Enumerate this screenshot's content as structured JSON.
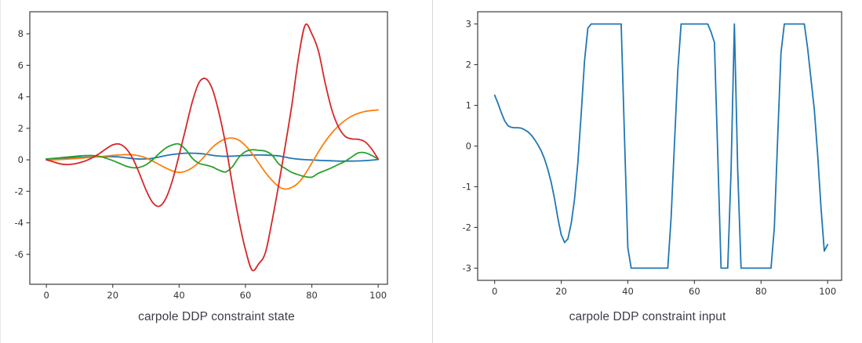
{
  "page": {
    "background": "#ffffff",
    "divider_color": "#d9d9d9"
  },
  "chart_data": [
    {
      "type": "line",
      "title": "carpole DDP constraint state",
      "xlabel": "",
      "ylabel": "",
      "x_ticks": [
        0,
        20,
        40,
        60,
        80,
        100
      ],
      "y_ticks": [
        8,
        6,
        4,
        2,
        0,
        -2,
        -4,
        -6
      ],
      "xlim": [
        -5,
        102.8
      ],
      "ylim": [
        -7.9,
        9.4
      ],
      "grid": false,
      "legend": null,
      "x": [
        0,
        2,
        4,
        6,
        8,
        10,
        12,
        14,
        16,
        18,
        20,
        22,
        24,
        26,
        28,
        30,
        32,
        34,
        36,
        38,
        40,
        42,
        44,
        46,
        48,
        50,
        52,
        54,
        56,
        58,
        60,
        62,
        64,
        66,
        68,
        70,
        72,
        74,
        76,
        78,
        80,
        82,
        84,
        86,
        88,
        90,
        92,
        94,
        96,
        98,
        100
      ],
      "series": [
        {
          "name": "blue-line",
          "color": "#1f77b4",
          "values": [
            0.05,
            0.08,
            0.1,
            0.12,
            0.14,
            0.15,
            0.17,
            0.18,
            0.19,
            0.2,
            0.2,
            0.18,
            0.13,
            0.08,
            0.05,
            0.06,
            0.1,
            0.18,
            0.27,
            0.34,
            0.39,
            0.42,
            0.42,
            0.4,
            0.36,
            0.29,
            0.24,
            0.22,
            0.23,
            0.26,
            0.28,
            0.3,
            0.31,
            0.3,
            0.28,
            0.25,
            0.17,
            0.09,
            0.04,
            0.01,
            -0.01,
            -0.03,
            -0.05,
            -0.06,
            -0.08,
            -0.08,
            -0.08,
            -0.07,
            -0.05,
            -0.02,
            0.02
          ]
        },
        {
          "name": "orange-line",
          "color": "#ff7f0e",
          "values": [
            0.0,
            0.0,
            0.02,
            0.04,
            0.07,
            0.1,
            0.13,
            0.17,
            0.2,
            0.24,
            0.28,
            0.31,
            0.33,
            0.32,
            0.25,
            0.12,
            -0.08,
            -0.3,
            -0.52,
            -0.7,
            -0.8,
            -0.72,
            -0.5,
            -0.15,
            0.3,
            0.78,
            1.12,
            1.33,
            1.38,
            1.25,
            0.9,
            0.4,
            -0.2,
            -0.8,
            -1.3,
            -1.7,
            -1.86,
            -1.75,
            -1.45,
            -0.9,
            -0.2,
            0.5,
            1.15,
            1.7,
            2.15,
            2.5,
            2.77,
            2.95,
            3.07,
            3.13,
            3.17
          ]
        },
        {
          "name": "green-line",
          "color": "#2ca02c",
          "values": [
            0.05,
            0.09,
            0.13,
            0.17,
            0.21,
            0.25,
            0.27,
            0.27,
            0.22,
            0.1,
            -0.05,
            -0.22,
            -0.4,
            -0.5,
            -0.48,
            -0.32,
            0.0,
            0.4,
            0.75,
            0.95,
            1.0,
            0.65,
            0.1,
            -0.22,
            -0.33,
            -0.45,
            -0.65,
            -0.77,
            -0.45,
            0.15,
            0.52,
            0.64,
            0.6,
            0.55,
            0.3,
            -0.25,
            -0.55,
            -0.8,
            -0.95,
            -1.07,
            -1.1,
            -0.85,
            -0.68,
            -0.5,
            -0.3,
            -0.1,
            0.18,
            0.44,
            0.45,
            0.28,
            0.05
          ]
        },
        {
          "name": "red-line",
          "color": "#d62728",
          "values": [
            0.0,
            -0.12,
            -0.25,
            -0.3,
            -0.27,
            -0.18,
            -0.05,
            0.15,
            0.4,
            0.7,
            0.95,
            1.0,
            0.72,
            0.1,
            -0.85,
            -1.9,
            -2.7,
            -2.95,
            -2.45,
            -1.3,
            0.3,
            2.0,
            3.7,
            4.9,
            5.15,
            4.5,
            3.0,
            1.0,
            -1.5,
            -3.8,
            -5.7,
            -7.0,
            -6.6,
            -5.9,
            -3.9,
            -1.6,
            0.9,
            3.5,
            6.5,
            8.55,
            8.0,
            6.9,
            4.9,
            3.2,
            2.1,
            1.5,
            1.33,
            1.3,
            1.15,
            0.7,
            0.05
          ]
        }
      ]
    },
    {
      "type": "line",
      "title": "carpole DDP constraint input",
      "xlabel": "",
      "ylabel": "",
      "x_ticks": [
        0,
        20,
        40,
        60,
        80,
        100
      ],
      "y_ticks": [
        3,
        2,
        1,
        0,
        -1,
        -2,
        -3
      ],
      "xlim": [
        -5.1,
        104.2
      ],
      "ylim": [
        -3.3,
        3.3
      ],
      "grid": false,
      "legend": null,
      "x": [
        0,
        1,
        2,
        3,
        4,
        5,
        6,
        7,
        8,
        9,
        10,
        11,
        12,
        13,
        14,
        15,
        16,
        17,
        18,
        19,
        20,
        21,
        22,
        23,
        24,
        25,
        26,
        27,
        28,
        29,
        30,
        31,
        32,
        33,
        34,
        35,
        36,
        37,
        38,
        39,
        40,
        41,
        42,
        43,
        44,
        45,
        46,
        47,
        48,
        49,
        50,
        51,
        52,
        53,
        54,
        55,
        56,
        57,
        58,
        59,
        60,
        61,
        62,
        63,
        64,
        65,
        66,
        67,
        68,
        69,
        70,
        71,
        72,
        73,
        74,
        75,
        76,
        77,
        78,
        79,
        80,
        81,
        82,
        83,
        84,
        85,
        86,
        87,
        88,
        89,
        90,
        91,
        92,
        93,
        94,
        95,
        96,
        97,
        98,
        99,
        100
      ],
      "series": [
        {
          "name": "blue-line",
          "color": "#1f77b4",
          "values": [
            1.25,
            1.05,
            0.82,
            0.62,
            0.5,
            0.46,
            0.45,
            0.45,
            0.44,
            0.4,
            0.35,
            0.27,
            0.16,
            0.03,
            -0.12,
            -0.32,
            -0.58,
            -0.9,
            -1.3,
            -1.78,
            -2.18,
            -2.37,
            -2.28,
            -1.9,
            -1.3,
            -0.4,
            0.8,
            2.1,
            2.9,
            3.0,
            3.0,
            3.0,
            3.0,
            3.0,
            3.0,
            3.0,
            3.0,
            3.0,
            3.0,
            0.2,
            -2.5,
            -3.0,
            -3.0,
            -3.0,
            -3.0,
            -3.0,
            -3.0,
            -3.0,
            -3.0,
            -3.0,
            -3.0,
            -3.0,
            -3.0,
            -1.75,
            0.05,
            1.85,
            3.0,
            3.0,
            3.0,
            3.0,
            3.0,
            3.0,
            3.0,
            3.0,
            3.0,
            2.8,
            2.55,
            -0.2,
            -3.0,
            -3.0,
            -3.0,
            -0.6,
            3.0,
            -0.6,
            -3.0,
            -3.0,
            -3.0,
            -3.0,
            -3.0,
            -3.0,
            -3.0,
            -3.0,
            -3.0,
            -3.0,
            -2.0,
            0.2,
            2.3,
            3.0,
            3.0,
            3.0,
            3.0,
            3.0,
            3.0,
            3.0,
            2.4,
            1.65,
            0.9,
            -0.2,
            -1.5,
            -2.58,
            -2.42
          ]
        }
      ]
    }
  ]
}
